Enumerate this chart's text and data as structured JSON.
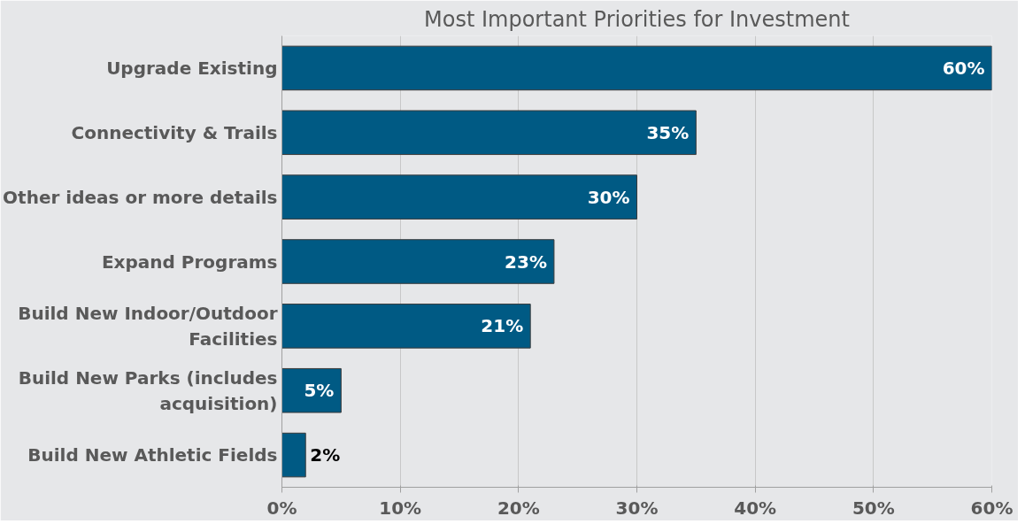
{
  "chart_data": {
    "type": "bar",
    "orientation": "horizontal",
    "title": "Most Important Priorities for Investment",
    "categories": [
      "Upgrade Existing",
      "Connectivity & Trails",
      "Other ideas or more details",
      "Expand Programs",
      "Build New Indoor/Outdoor Facilities",
      "Build New Parks (includes acquisition)",
      "Build New Athletic Fields"
    ],
    "values": [
      60,
      35,
      30,
      23,
      21,
      5,
      2
    ],
    "value_labels": [
      "60%",
      "35%",
      "30%",
      "23%",
      "21%",
      "5%",
      "2%"
    ],
    "color": "#005a84",
    "xlim": [
      0,
      60
    ],
    "xticks": [
      {
        "value": 0,
        "label": "0%"
      },
      {
        "value": 10,
        "label": "10%"
      },
      {
        "value": 20,
        "label": "20%"
      },
      {
        "value": 30,
        "label": "30%"
      },
      {
        "value": 40,
        "label": "40%"
      },
      {
        "value": 50,
        "label": "50%"
      },
      {
        "value": 60,
        "label": "60%"
      }
    ],
    "grid": "x"
  }
}
